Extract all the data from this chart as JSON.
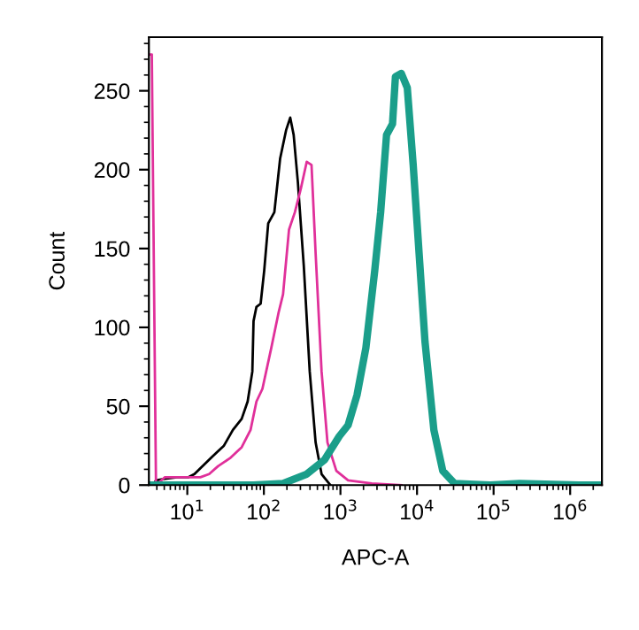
{
  "chart_data": {
    "type": "line",
    "xlabel": "APC-A",
    "ylabel": "Count",
    "log": "x",
    "xlim": [
      3.15,
      2600000
    ],
    "ylim": [
      0,
      284
    ],
    "xticks": [
      {
        "value": 10,
        "label": "10$^{1}$"
      },
      {
        "value": 100,
        "label": "10$^{2}$"
      },
      {
        "value": 1000,
        "label": "10$^{3}$"
      },
      {
        "value": 10000,
        "label": "10$^{4}$"
      },
      {
        "value": 100000,
        "label": "10$^{5}$"
      },
      {
        "value": 1000000,
        "label": "10$^{6}$"
      }
    ],
    "yticks": [
      0,
      50,
      100,
      150,
      200,
      250
    ],
    "grid": false,
    "legend": false,
    "marker": "none",
    "line_style": "solid",
    "series": [
      {
        "color": "#000000",
        "x": [
          3.56,
          3.9,
          5.1,
          7.3,
          10.4,
          12.4,
          21.1,
          30.1,
          39.4,
          51.3,
          61.4,
          70.7,
          73.3,
          80,
          90.7,
          101,
          114,
          137,
          163,
          195,
          221,
          245,
          278,
          332,
          397,
          474,
          567,
          739
        ],
        "values": [
          0,
          3,
          4,
          5,
          5,
          7,
          18,
          25,
          35,
          42,
          53,
          72,
          104,
          113,
          115,
          136,
          166,
          173,
          207,
          225,
          233,
          222,
          192,
          139,
          72,
          27,
          7,
          0
        ]
      },
      {
        "color": "#e0309a",
        "x": [
          3.27,
          3.44,
          3.9,
          5.1,
          7.3,
          10.4,
          14.8,
          19.3,
          25.2,
          36.0,
          51.3,
          67,
          80,
          95.7,
          125,
          155,
          178,
          213,
          254,
          304,
          363,
          419,
          474,
          567,
          677,
          884,
          1259,
          2566,
          6240
        ],
        "values": [
          273,
          273,
          0,
          5,
          5,
          5,
          5,
          7,
          12,
          17,
          24,
          35,
          53,
          61,
          87,
          109,
          121,
          162,
          173,
          188,
          205,
          203,
          147,
          72,
          27,
          9,
          3,
          1,
          0
        ]
      },
      {
        "color": "#1a9e8a",
        "x": [
          3.56,
          73.3,
          178,
          363,
          619,
          966,
          1259,
          1644,
          2148,
          2805,
          3350,
          4000,
          4786,
          5225,
          6240,
          7460,
          8913,
          10640,
          12710,
          16600,
          21680,
          30900,
          89900,
          218800,
          1290000,
          2600000
        ],
        "values": [
          0,
          0,
          1,
          7,
          16,
          31,
          38,
          57,
          87,
          136,
          173,
          222,
          229,
          259,
          261,
          252,
          203,
          147,
          91,
          35,
          9,
          1,
          0,
          1,
          0,
          0
        ]
      }
    ]
  }
}
